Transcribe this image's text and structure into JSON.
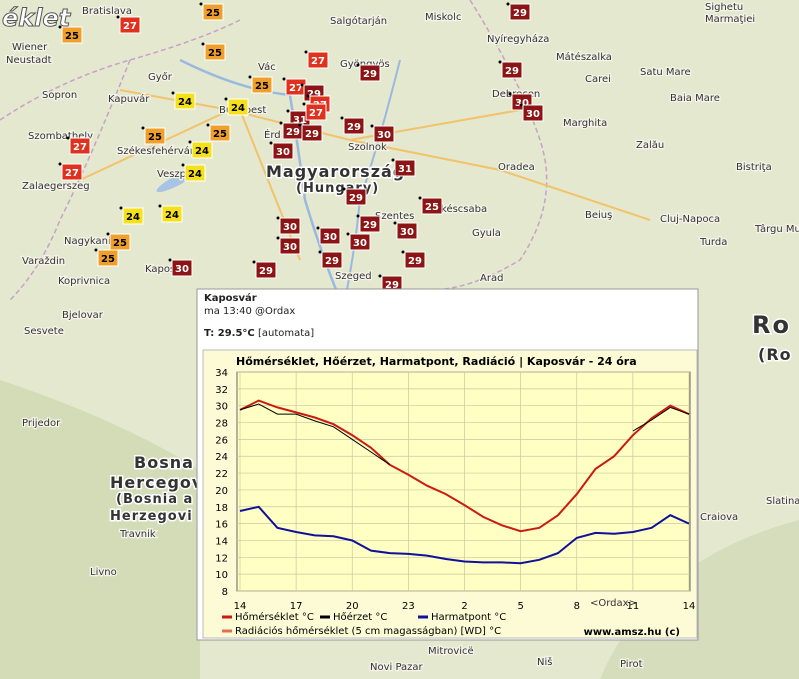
{
  "map": {
    "labels": [
      "éklet",
      "Bratislava",
      "Wiener",
      "Neustadt",
      "Győr",
      "Kapuvár",
      "Sopron",
      "Szombathely",
      "Székesfehérvár",
      "Veszprém",
      "Zalaegerszeg",
      "Nagykanizsa",
      "Varaždin",
      "Koprivnica",
      "Kaposvár",
      "Bjelovar",
      "Sesvete",
      "Budapest",
      "Vác",
      "Gyöngyös",
      "Salgótarján",
      "Miskolc",
      "Nyíregyháza",
      "Mátészalka",
      "Carei",
      "Debrecen",
      "Marghita",
      "Oradea",
      "Szolnok",
      "Magyarország",
      "(Hungary)",
      "Szentes",
      "Békéscsaba",
      "Gyula",
      "Szeged",
      "Arad",
      "Satu Mare",
      "Baia Mare",
      "Zalău",
      "Bistriţa",
      "Cluj-Napoca",
      "Turda",
      "Târgu Mureş",
      "Beiuş",
      "Érd",
      "Ro",
      "(Ro",
      "Bosna i",
      "Hercegov",
      "(Bosnia a",
      "Herzegovi",
      "Travnik",
      "Livno",
      "Craiova",
      "Slatina",
      "Niš",
      "Pirot",
      "Mitrovicë",
      "Novi Pazar",
      "Prijedor",
      "Sighetu",
      "Marmaţiei"
    ],
    "markers": [
      {
        "value": 25,
        "color": "#f0a02a"
      },
      {
        "value": 27,
        "color": "#e0301e"
      },
      {
        "value": 25,
        "color": "#f0a02a"
      },
      {
        "value": 25,
        "color": "#f0a02a"
      },
      {
        "value": 24,
        "color": "#f5e11a"
      },
      {
        "value": 25,
        "color": "#f0a02a"
      },
      {
        "value": 24,
        "color": "#f5e11a"
      },
      {
        "value": 27,
        "color": "#e0301e"
      },
      {
        "value": 27,
        "color": "#e0301e"
      },
      {
        "value": 29,
        "color": "#8c1414"
      },
      {
        "value": 27,
        "color": "#e0301e"
      },
      {
        "value": 31,
        "color": "#8c1414"
      },
      {
        "value": 27,
        "color": "#e0301e"
      },
      {
        "value": 29,
        "color": "#8c1414"
      },
      {
        "value": 29,
        "color": "#8c1414"
      },
      {
        "value": 30,
        "color": "#8c1414"
      },
      {
        "value": 25,
        "color": "#f0a02a"
      },
      {
        "value": 25,
        "color": "#f0a02a"
      },
      {
        "value": 27,
        "color": "#e0301e"
      },
      {
        "value": 24,
        "color": "#f5e11a"
      },
      {
        "value": 24,
        "color": "#f5e11a"
      },
      {
        "value": 27,
        "color": "#e0301e"
      },
      {
        "value": 29,
        "color": "#8c1414"
      },
      {
        "value": 29,
        "color": "#8c1414"
      },
      {
        "value": 29,
        "color": "#8c1414"
      },
      {
        "value": 30,
        "color": "#8c1414"
      },
      {
        "value": 30,
        "color": "#8c1414"
      },
      {
        "value": 29,
        "color": "#8c1414"
      },
      {
        "value": 30,
        "color": "#8c1414"
      },
      {
        "value": 31,
        "color": "#8c1414"
      },
      {
        "value": 29,
        "color": "#8c1414"
      },
      {
        "value": 24,
        "color": "#f5e11a"
      },
      {
        "value": 24,
        "color": "#f5e11a"
      },
      {
        "value": 25,
        "color": "#f0a02a"
      },
      {
        "value": 25,
        "color": "#f0a02a"
      },
      {
        "value": 30,
        "color": "#8c1414"
      },
      {
        "value": 30,
        "color": "#8c1414"
      },
      {
        "value": 30,
        "color": "#8c1414"
      },
      {
        "value": 30,
        "color": "#8c1414"
      },
      {
        "value": 29,
        "color": "#8c1414"
      },
      {
        "value": 30,
        "color": "#8c1414"
      },
      {
        "value": 30,
        "color": "#8c1414"
      },
      {
        "value": 25,
        "color": "#8c1414"
      },
      {
        "value": 29,
        "color": "#8c1414"
      },
      {
        "value": 29,
        "color": "#8c1414"
      },
      {
        "value": 29,
        "color": "#8c1414"
      },
      {
        "value": 29,
        "color": "#8c1414"
      }
    ]
  },
  "popup": {
    "station": "Kaposvár",
    "time": "ma 13:40 @Ordax",
    "temperature": "T: 29.5°C",
    "source": "[automata]"
  },
  "chart_data": {
    "type": "line",
    "title": "Hőmérséklet, Hőérzet, Harmatpont, Radiáció | Kaposvár - 24 óra",
    "categories": [
      "14",
      null,
      null,
      "17",
      null,
      null,
      "20",
      null,
      null,
      "23",
      null,
      null,
      "2",
      null,
      null,
      "5",
      null,
      null,
      "8",
      null,
      null,
      "11",
      null,
      null,
      "14"
    ],
    "xlabel": "<Ordax>",
    "credit": "www.amsz.hu (c)",
    "ylim": [
      8,
      34
    ],
    "yticks": [
      8,
      10,
      12,
      14,
      16,
      18,
      20,
      22,
      24,
      26,
      28,
      30,
      32,
      34
    ],
    "grid": true,
    "series": [
      {
        "name": "Hőmérséklet °C",
        "color": "#cc1a10",
        "values": [
          29.5,
          30.6,
          29.8,
          29.2,
          28.6,
          27.8,
          26.5,
          25.0,
          23.0,
          21.8,
          20.5,
          19.5,
          18.2,
          16.8,
          15.8,
          15.1,
          15.5,
          17.0,
          19.5,
          22.5,
          24.0,
          26.5,
          28.5,
          30.0,
          29.0
        ]
      },
      {
        "name": "Hőérzet °C",
        "color": "#000000",
        "values": [
          29.5,
          30.2,
          29.0,
          29.0,
          28.2,
          27.5,
          26.0,
          24.5,
          23.0,
          null,
          null,
          null,
          null,
          null,
          null,
          null,
          null,
          null,
          null,
          null,
          null,
          27.0,
          28.3,
          29.8,
          29.0
        ]
      },
      {
        "name": "Harmatpont °C",
        "color": "#10109a",
        "values": [
          17.5,
          18.0,
          15.5,
          15.0,
          14.6,
          14.5,
          14.0,
          12.8,
          12.5,
          12.4,
          12.2,
          11.8,
          11.5,
          11.4,
          11.4,
          11.3,
          11.7,
          12.5,
          14.3,
          14.9,
          14.8,
          15.0,
          15.5,
          17.0,
          16.0
        ]
      },
      {
        "name": "Radiációs hőmérséklet (5 cm magasságban) [WD] °C",
        "color": "#e07050",
        "values": [
          null,
          null,
          null,
          null,
          null,
          null,
          null,
          null,
          null,
          null,
          null,
          null,
          null,
          null,
          null,
          null,
          null,
          null,
          null,
          null,
          null,
          null,
          null,
          null,
          null
        ]
      }
    ]
  }
}
